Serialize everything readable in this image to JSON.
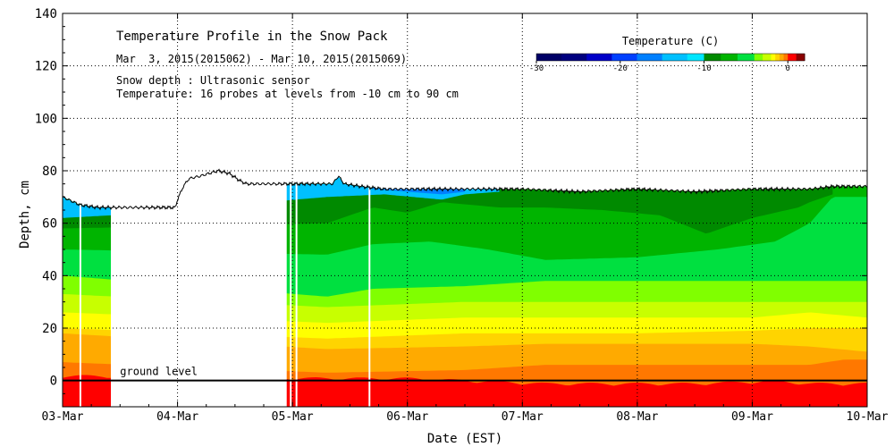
{
  "chart_data": {
    "type": "heatmap",
    "title": "Temperature Profile in the Snow Pack",
    "subtitle": "Mar  3, 2015(2015062) - Mar 10, 2015(2015069)",
    "notes": [
      "Snow depth : Ultrasonic sensor",
      "Temperature: 16 probes at levels from -10 cm to 90 cm"
    ],
    "xlabel": "Date (EST)",
    "ylabel": "Depth, cm",
    "x_range_days": [
      0,
      7
    ],
    "ylim": [
      -10,
      140
    ],
    "x_ticks": [
      {
        "day": 0,
        "label": "03-Mar"
      },
      {
        "day": 1,
        "label": "04-Mar"
      },
      {
        "day": 2,
        "label": "05-Mar"
      },
      {
        "day": 3,
        "label": "06-Mar"
      },
      {
        "day": 4,
        "label": "07-Mar"
      },
      {
        "day": 5,
        "label": "08-Mar"
      },
      {
        "day": 6,
        "label": "09-Mar"
      },
      {
        "day": 7,
        "label": "10-Mar"
      }
    ],
    "y_ticks": [
      0,
      20,
      40,
      60,
      80,
      100,
      120,
      140
    ],
    "grid": true,
    "legend": {
      "title": "Temperature (C)",
      "placement": "top-right",
      "range": [
        -30,
        2
      ],
      "tick_values": [
        -30,
        -20,
        -10,
        0
      ],
      "tick_labels": [
        "-30",
        "-20",
        "-10",
        "0"
      ],
      "bins": [
        {
          "from": -30,
          "to": -27,
          "color": "#000066"
        },
        {
          "from": -27,
          "to": -24,
          "color": "#00007f"
        },
        {
          "from": -24,
          "to": -21,
          "color": "#0000c8"
        },
        {
          "from": -21,
          "to": -18,
          "color": "#0040ff"
        },
        {
          "from": -18,
          "to": -15,
          "color": "#0080ff"
        },
        {
          "from": -15,
          "to": -12,
          "color": "#00c0ff"
        },
        {
          "from": -12,
          "to": -10,
          "color": "#00e6ff"
        },
        {
          "from": -10,
          "to": -8,
          "color": "#008a00"
        },
        {
          "from": -8,
          "to": -6,
          "color": "#00b400"
        },
        {
          "from": -6,
          "to": -4,
          "color": "#00e040"
        },
        {
          "from": -4,
          "to": -3,
          "color": "#80ff00"
        },
        {
          "from": -3,
          "to": -2,
          "color": "#c8ff00"
        },
        {
          "from": -2,
          "to": -1.5,
          "color": "#ffff00"
        },
        {
          "from": -1.5,
          "to": -1,
          "color": "#ffd400"
        },
        {
          "from": -1,
          "to": -0.5,
          "color": "#ffaa00"
        },
        {
          "from": -0.5,
          "to": 0,
          "color": "#ff7800"
        },
        {
          "from": 0,
          "to": 1,
          "color": "#ff0000"
        },
        {
          "from": 1,
          "to": 2,
          "color": "#8b0000"
        }
      ]
    },
    "ground_level": {
      "depth": 0,
      "label": "ground level"
    },
    "data_gaps_days": [
      [
        0.42,
        1.95
      ]
    ],
    "sensor_dropout_lines_days": [
      0.155,
      1.985,
      2.035,
      2.67
    ],
    "snow_depth_cm": [
      [
        0.0,
        70
      ],
      [
        0.15,
        67
      ],
      [
        0.3,
        66
      ],
      [
        0.45,
        66
      ],
      [
        0.6,
        66
      ],
      [
        0.75,
        66
      ],
      [
        0.9,
        66
      ],
      [
        0.98,
        66
      ],
      [
        1.0,
        69
      ],
      [
        1.05,
        74
      ],
      [
        1.1,
        77
      ],
      [
        1.2,
        78
      ],
      [
        1.35,
        80
      ],
      [
        1.45,
        79
      ],
      [
        1.55,
        76
      ],
      [
        1.6,
        75
      ],
      [
        1.75,
        75
      ],
      [
        2.0,
        75
      ],
      [
        2.2,
        75
      ],
      [
        2.35,
        75
      ],
      [
        2.4,
        78
      ],
      [
        2.45,
        75
      ],
      [
        2.6,
        74
      ],
      [
        2.8,
        73
      ],
      [
        3.0,
        73
      ],
      [
        3.5,
        73
      ],
      [
        4.0,
        73
      ],
      [
        4.5,
        72
      ],
      [
        5.0,
        73
      ],
      [
        5.5,
        72
      ],
      [
        6.0,
        73
      ],
      [
        6.5,
        73
      ],
      [
        6.7,
        74
      ],
      [
        7.0,
        74
      ]
    ],
    "temperature_layers": [
      {
        "color": "#ff0000",
        "boundary_cm": [
          [
            0,
            -10
          ],
          [
            7,
            -10
          ]
        ]
      },
      {
        "color": "#ff7800",
        "boundary_cm": [
          [
            0,
            1
          ],
          [
            2.3,
            0
          ],
          [
            3,
            0
          ],
          [
            3.6,
            -1
          ],
          [
            4.2,
            -2
          ],
          [
            5.5,
            -2
          ],
          [
            6.2,
            -1
          ],
          [
            6.5,
            -2
          ],
          [
            7,
            -2
          ]
        ]
      },
      {
        "color": "#ffaa00",
        "boundary_cm": [
          [
            0,
            7
          ],
          [
            2.3,
            3
          ],
          [
            3.5,
            4
          ],
          [
            4.2,
            6
          ],
          [
            5,
            6
          ],
          [
            6.5,
            6
          ],
          [
            6.8,
            8
          ],
          [
            7,
            8
          ]
        ]
      },
      {
        "color": "#ffd400",
        "boundary_cm": [
          [
            0,
            18
          ],
          [
            2.3,
            12
          ],
          [
            3.5,
            13
          ],
          [
            4.2,
            14
          ],
          [
            5,
            14
          ],
          [
            6,
            14
          ],
          [
            6.5,
            13
          ],
          [
            7,
            11
          ]
        ]
      },
      {
        "color": "#ffff00",
        "boundary_cm": [
          [
            0,
            20
          ],
          [
            2.3,
            16
          ],
          [
            3.5,
            18
          ],
          [
            4.2,
            18
          ],
          [
            5,
            18
          ],
          [
            6,
            19
          ],
          [
            6.5,
            20
          ],
          [
            7,
            20
          ]
        ]
      },
      {
        "color": "#c8ff00",
        "boundary_cm": [
          [
            0,
            26
          ],
          [
            2.3,
            22
          ],
          [
            3.5,
            24
          ],
          [
            4.2,
            24
          ],
          [
            5,
            24
          ],
          [
            6,
            24
          ],
          [
            6.5,
            26
          ],
          [
            7,
            24
          ]
        ]
      },
      {
        "color": "#80ff00",
        "boundary_cm": [
          [
            0,
            33
          ],
          [
            2.3,
            28
          ],
          [
            3.5,
            30
          ],
          [
            4.2,
            30
          ],
          [
            5,
            30
          ],
          [
            6,
            30
          ],
          [
            7,
            30
          ]
        ]
      },
      {
        "color": "#00e040",
        "boundary_cm": [
          [
            0,
            40
          ],
          [
            2.3,
            32
          ],
          [
            2.7,
            35
          ],
          [
            3.5,
            36
          ],
          [
            4.2,
            38
          ],
          [
            5,
            38
          ],
          [
            6,
            38
          ],
          [
            7,
            38
          ]
        ]
      },
      {
        "color": "#00b400",
        "boundary_cm": [
          [
            0,
            50
          ],
          [
            2.3,
            48
          ],
          [
            2.7,
            52
          ],
          [
            3.2,
            53
          ],
          [
            3.7,
            50
          ],
          [
            4.2,
            46
          ],
          [
            5,
            47
          ],
          [
            5.7,
            50
          ],
          [
            6.2,
            53
          ],
          [
            6.5,
            60
          ],
          [
            6.7,
            70
          ],
          [
            7,
            70
          ]
        ]
      },
      {
        "color": "#008a00",
        "boundary_cm": [
          [
            0,
            58
          ],
          [
            2.3,
            60
          ],
          [
            2.7,
            66
          ],
          [
            3.0,
            64
          ],
          [
            3.3,
            68
          ],
          [
            3.8,
            66
          ],
          [
            4.2,
            66
          ],
          [
            4.7,
            65
          ],
          [
            5.2,
            63
          ],
          [
            5.6,
            56
          ],
          [
            6.0,
            62
          ],
          [
            6.4,
            66
          ],
          [
            6.5,
            68
          ],
          [
            6.7,
            71
          ]
        ]
      },
      {
        "color": "#00c0ff",
        "boundary_cm": [
          [
            0,
            62
          ],
          [
            0.42,
            63
          ],
          [
            2.3,
            70
          ],
          [
            2.8,
            71
          ],
          [
            3.3,
            69
          ],
          [
            3.5,
            71
          ],
          [
            3.8,
            72
          ]
        ]
      },
      {
        "color": "#0080ff",
        "boundary_cm": [
          [
            2.7,
            73
          ],
          [
            3.0,
            72
          ],
          [
            3.3,
            71
          ],
          [
            3.5,
            72
          ]
        ]
      }
    ]
  }
}
